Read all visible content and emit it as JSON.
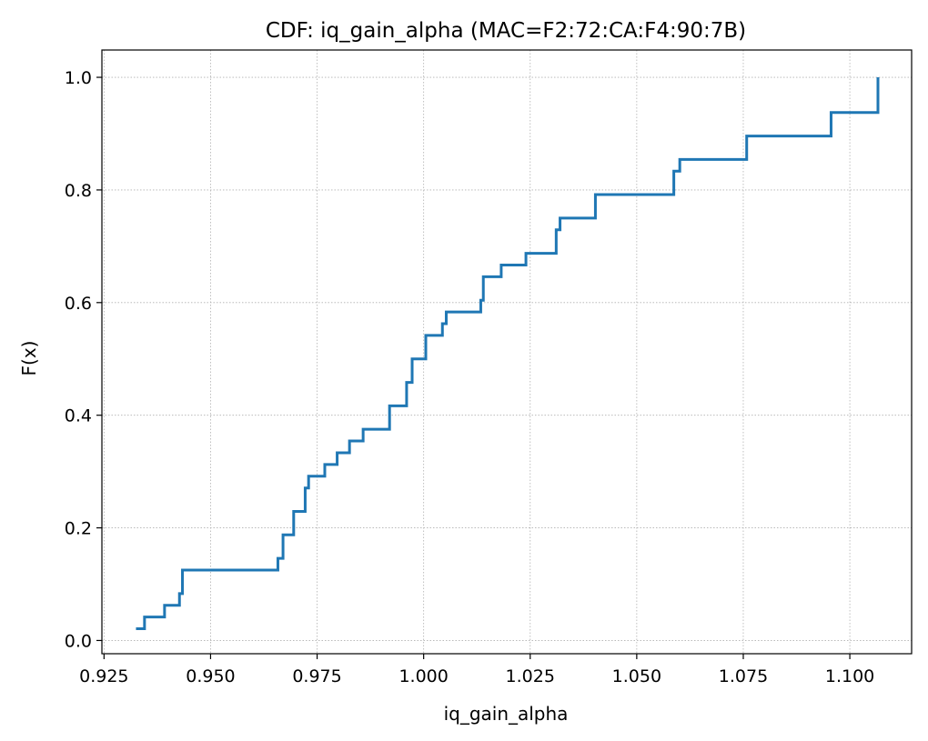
{
  "chart_data": {
    "type": "line",
    "step": true,
    "title": "CDF: iq_gain_alpha (MAC=F2:72:CA:F4:90:7B)",
    "xlabel": "iq_gain_alpha",
    "ylabel": "F(x)",
    "xlim": [
      0.9245,
      1.1145
    ],
    "ylim": [
      -0.0235,
      1.0485
    ],
    "x_ticks": [
      0.925,
      0.95,
      0.975,
      1.0,
      1.025,
      1.05,
      1.075,
      1.1
    ],
    "x_tick_labels": [
      "0.925",
      "0.950",
      "0.975",
      "1.000",
      "1.025",
      "1.050",
      "1.075",
      "1.100"
    ],
    "y_ticks": [
      0.0,
      0.2,
      0.4,
      0.6,
      0.8,
      1.0
    ],
    "y_tick_labels": [
      "0.0",
      "0.2",
      "0.4",
      "0.6",
      "0.8",
      "1.0"
    ],
    "grid": true,
    "line_color": "#1f77b4",
    "series": [
      {
        "x": [
          0.9325,
          0.9345,
          0.9392,
          0.9427,
          0.9434,
          0.9658,
          0.967,
          0.9695,
          0.9722,
          0.973,
          0.9768,
          0.9797,
          0.9826,
          0.9858,
          0.992,
          0.996,
          0.9973,
          1.0005,
          1.0044,
          1.0053,
          1.0134,
          1.014,
          1.0182,
          1.024,
          1.0311,
          1.032,
          1.0403,
          1.0587,
          1.0601,
          1.0758,
          1.0956,
          1.1066
        ],
        "y": [
          0.0208,
          0.0417,
          0.0625,
          0.0833,
          0.125,
          0.1458,
          0.1875,
          0.2292,
          0.2708,
          0.2917,
          0.3125,
          0.3333,
          0.3542,
          0.375,
          0.4167,
          0.4583,
          0.5,
          0.5417,
          0.5625,
          0.5833,
          0.6042,
          0.6458,
          0.6667,
          0.6875,
          0.7292,
          0.75,
          0.7917,
          0.8333,
          0.8542,
          0.8958,
          0.9375,
          0.9583
        ]
      }
    ],
    "end_point": [
      1.1066,
      1.0
    ]
  }
}
